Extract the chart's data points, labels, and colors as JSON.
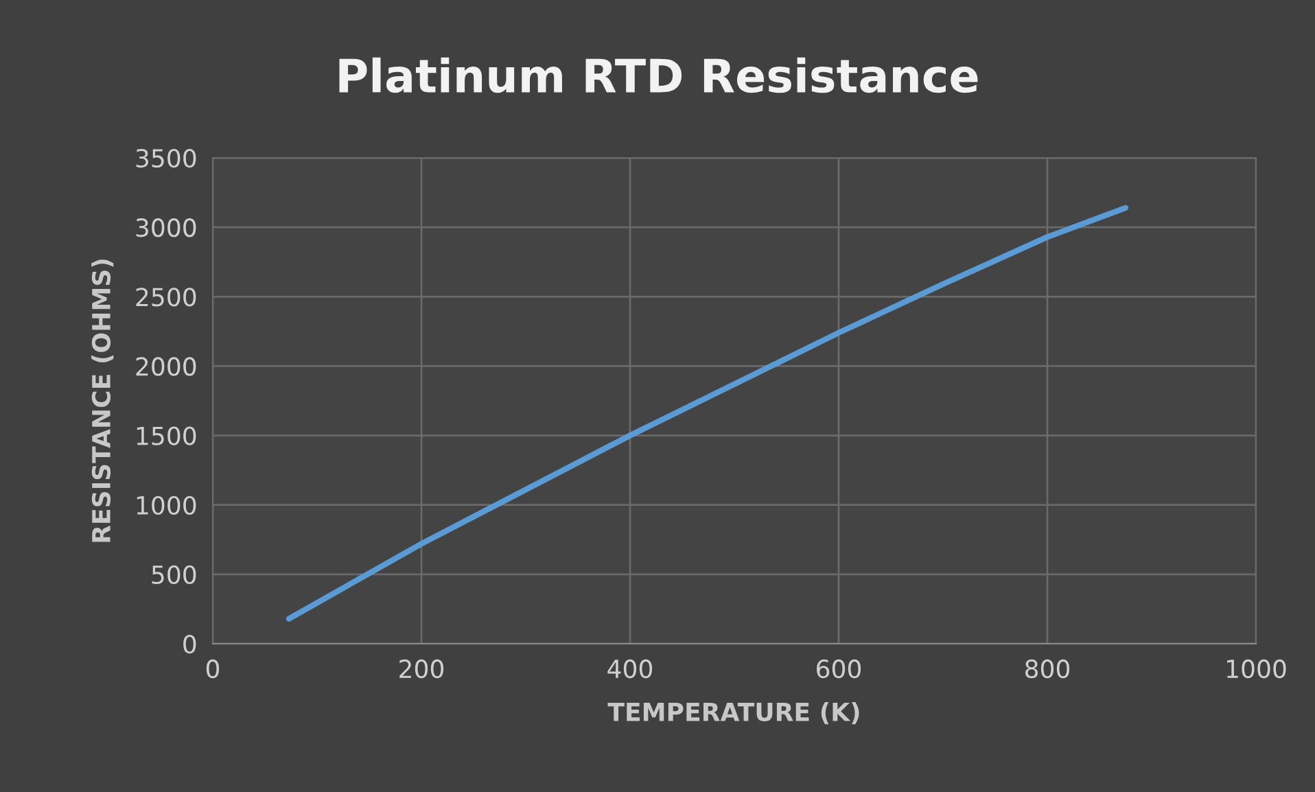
{
  "chart_data": {
    "type": "line",
    "title": "Platinum RTD Resistance",
    "xlabel": "TEMPERATURE (K)",
    "ylabel": "RESISTANCE (OHMS)",
    "series": [
      {
        "color": "#5b9bd5",
        "x": [
          73,
          200,
          300,
          400,
          500,
          600,
          700,
          800,
          875
        ],
        "values": [
          180,
          720,
          1110,
          1500,
          1870,
          2240,
          2590,
          2930,
          3140
        ]
      }
    ],
    "xlim": [
      0,
      1000
    ],
    "xticks": [
      0,
      200,
      400,
      600,
      800,
      1000
    ],
    "ylim": [
      0,
      3500
    ],
    "yticks": [
      0,
      500,
      1000,
      1500,
      2000,
      2500,
      3000,
      3500
    ],
    "grid": true,
    "marker": "none",
    "line_style": "solid"
  }
}
